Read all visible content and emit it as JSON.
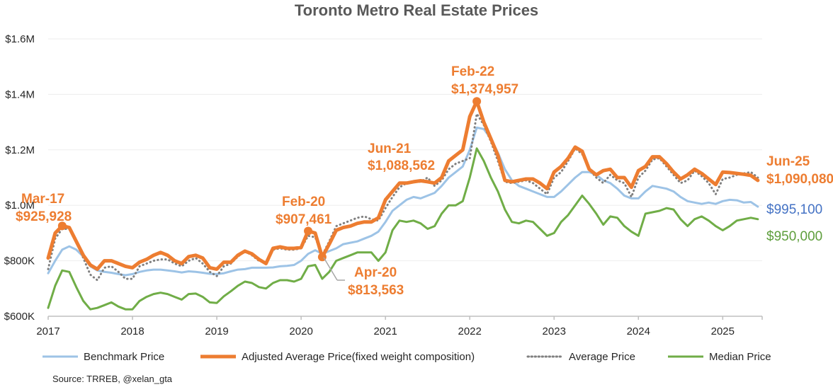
{
  "chart_data": {
    "type": "line",
    "title": "Toronto Metro Real Estate Prices",
    "xlabel": "",
    "ylabel": "",
    "x_start": "2017-01",
    "x_frequency": "monthly",
    "x_ticks": [
      "2017",
      "2018",
      "2019",
      "2020",
      "2021",
      "2022",
      "2023",
      "2024",
      "2025"
    ],
    "y_ticks": [
      "$600K",
      "$800K",
      "$1.0M",
      "$1.2M",
      "$1.4M",
      "$1.6M"
    ],
    "ylim": [
      600,
      1600
    ],
    "y_units": "thousands CAD",
    "grid": "horizontal",
    "legend_position": "bottom",
    "series": [
      {
        "name": "Benchmark Price",
        "color": "#9DC3E6",
        "style": "solid",
        "values": [
          755,
          800,
          840,
          852,
          840,
          815,
          780,
          765,
          760,
          757,
          752,
          748,
          752,
          760,
          765,
          768,
          768,
          765,
          762,
          758,
          762,
          760,
          757,
          753,
          752,
          755,
          762,
          768,
          770,
          775,
          775,
          775,
          776,
          780,
          782,
          785,
          800,
          825,
          838,
          825,
          835,
          845,
          860,
          865,
          870,
          880,
          890,
          905,
          940,
          980,
          1000,
          1020,
          1030,
          1025,
          1035,
          1045,
          1070,
          1100,
          1120,
          1140,
          1200,
          1280,
          1275,
          1240,
          1190,
          1130,
          1090,
          1070,
          1060,
          1050,
          1040,
          1030,
          1030,
          1050,
          1075,
          1100,
          1120,
          1120,
          1110,
          1090,
          1080,
          1060,
          1035,
          1025,
          1025,
          1050,
          1070,
          1065,
          1060,
          1050,
          1030,
          1015,
          1010,
          1005,
          1010,
          1005,
          1015,
          1020,
          1018,
          1010,
          1012,
          995.1
        ]
      },
      {
        "name": "Adjusted Average Price(fixed weight composition)",
        "color": "#ED7D31",
        "style": "thick",
        "values": [
          810,
          900,
          925.928,
          920,
          870,
          820,
          785,
          770,
          800,
          800,
          790,
          780,
          775,
          795,
          805,
          820,
          830,
          820,
          800,
          790,
          815,
          820,
          810,
          775,
          770,
          795,
          795,
          820,
          835,
          825,
          805,
          790,
          845,
          850,
          845,
          845,
          848,
          907.461,
          900,
          813.563,
          860,
          910,
          920,
          925,
          935,
          940,
          940,
          955,
          1020,
          1050,
          1080,
          1080,
          1085,
          1088.562,
          1085,
          1080,
          1100,
          1160,
          1180,
          1200,
          1320,
          1374.957,
          1300,
          1240,
          1180,
          1090,
          1085,
          1090,
          1095,
          1095,
          1080,
          1060,
          1120,
          1140,
          1170,
          1210,
          1195,
          1130,
          1110,
          1125,
          1130,
          1100,
          1100,
          1065,
          1125,
          1140,
          1175,
          1175,
          1150,
          1120,
          1095,
          1110,
          1130,
          1115,
          1095,
          1075,
          1120,
          1118,
          1115,
          1112,
          1108,
          1090.08
        ]
      },
      {
        "name": "Average Price",
        "color": "#808080",
        "style": "dotted",
        "values": [
          770,
          880,
          915,
          915,
          870,
          810,
          750,
          730,
          775,
          780,
          760,
          735,
          735,
          780,
          790,
          800,
          805,
          805,
          790,
          780,
          800,
          810,
          790,
          760,
          745,
          780,
          790,
          815,
          835,
          820,
          800,
          795,
          840,
          845,
          840,
          840,
          845,
          890,
          885,
          820,
          870,
          925,
          935,
          945,
          955,
          960,
          950,
          945,
          990,
          1030,
          1065,
          1080,
          1085,
          1085,
          1100,
          1070,
          1090,
          1130,
          1150,
          1160,
          1170,
          1330,
          1290,
          1230,
          1160,
          1085,
          1080,
          1085,
          1090,
          1080,
          1060,
          1040,
          1100,
          1120,
          1160,
          1205,
          1185,
          1130,
          1100,
          1080,
          1110,
          1090,
          1080,
          1030,
          1100,
          1125,
          1165,
          1170,
          1140,
          1110,
          1080,
          1090,
          1125,
          1105,
          1080,
          1040,
          1095,
          1100,
          1110,
          1115,
          1120,
          1100
        ]
      },
      {
        "name": "Median Price",
        "color": "#70AD47",
        "style": "solid",
        "values": [
          630,
          710,
          765,
          760,
          705,
          655,
          625,
          630,
          640,
          650,
          635,
          625,
          625,
          655,
          670,
          680,
          685,
          680,
          670,
          660,
          680,
          682,
          670,
          650,
          648,
          672,
          690,
          710,
          725,
          720,
          705,
          700,
          720,
          730,
          730,
          725,
          735,
          780,
          785,
          735,
          760,
          800,
          810,
          820,
          830,
          830,
          830,
          800,
          830,
          910,
          945,
          940,
          945,
          935,
          915,
          925,
          970,
          1000,
          1000,
          1015,
          1100,
          1205,
          1160,
          1100,
          1050,
          985,
          940,
          935,
          945,
          940,
          915,
          890,
          900,
          940,
          965,
          1000,
          1035,
          1005,
          970,
          930,
          960,
          955,
          925,
          905,
          890,
          970,
          975,
          980,
          990,
          985,
          950,
          925,
          950,
          960,
          945,
          925,
          910,
          925,
          945,
          950,
          955,
          950
        ]
      }
    ],
    "annotations": [
      {
        "date": "Mar-17",
        "label": "$925,928"
      },
      {
        "date": "Feb-20",
        "label": "$907,461"
      },
      {
        "date": "Apr-20",
        "label": "$813,563"
      },
      {
        "date": "Jun-21",
        "label": "$1,088,562"
      },
      {
        "date": "Feb-22",
        "label": "$1,374,957"
      },
      {
        "date": "Jun-25",
        "label": "$1,090,080"
      }
    ],
    "end_labels": {
      "benchmark": "$995,100",
      "median": "$950,000"
    },
    "source": "Source: TRREB, @xelan_gta"
  }
}
